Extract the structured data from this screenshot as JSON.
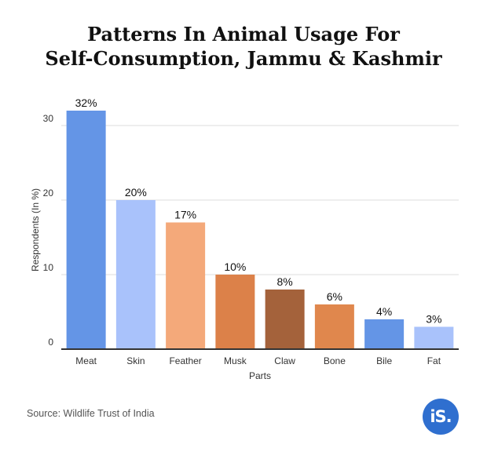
{
  "title_lines": [
    "Patterns In Animal Usage For",
    "Self-Consumption, Jammu & Kashmir"
  ],
  "source": "Source: Wildlife Trust of India",
  "logo_text": "iS.",
  "chart_data": {
    "type": "bar",
    "title": "Patterns In Animal Usage For Self-Consumption, Jammu & Kashmir",
    "xlabel": "Parts",
    "ylabel": "Respondents (In %)",
    "categories": [
      "Meat",
      "Skin",
      "Feather",
      "Musk",
      "Claw",
      "Bone",
      "Bile",
      "Fat"
    ],
    "values": [
      32,
      20,
      17,
      10,
      8,
      6,
      4,
      3
    ],
    "value_labels": [
      "32%",
      "20%",
      "17%",
      "10%",
      "8%",
      "6%",
      "4%",
      "3%"
    ],
    "colors": [
      "#6495e6",
      "#a9c2fb",
      "#f4a97a",
      "#dc8149",
      "#a4623b",
      "#e0874d",
      "#6495e6",
      "#a9c2fb"
    ],
    "ylim": [
      0,
      32
    ],
    "yticks": [
      0,
      10,
      20,
      30
    ],
    "grid": true,
    "legend": "none"
  }
}
